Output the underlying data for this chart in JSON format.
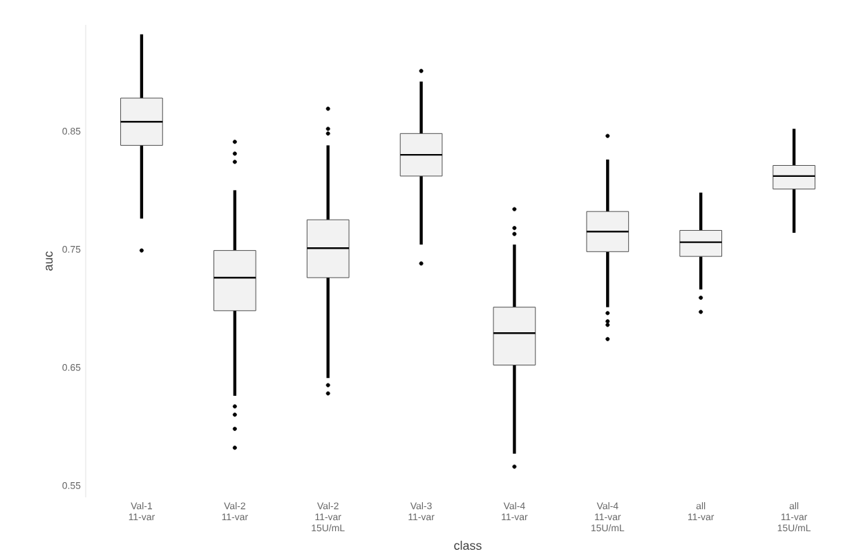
{
  "chart_data": {
    "type": "box",
    "xlabel": "class",
    "ylabel": "auc",
    "color": "#f2f2f2",
    "categories": [
      "Val-1 11-var",
      "Val-2 11-var",
      "Val-2 11-var 15U/mL",
      "Val-3 11-var",
      "Val-4 11-var",
      "Val-4 11-var 15U/mL",
      "all 11-var",
      "all 11-var 15U/mL"
    ],
    "boxes": [
      {
        "low": 0.776,
        "q1": 0.838,
        "median": 0.858,
        "q3": 0.878,
        "high": 0.932,
        "outliers": [
          0.749
        ]
      },
      {
        "low": 0.626,
        "q1": 0.698,
        "median": 0.726,
        "q3": 0.749,
        "high": 0.8,
        "outliers": [
          0.841,
          0.831,
          0.824,
          0.617,
          0.61,
          0.598,
          0.582
        ]
      },
      {
        "low": 0.641,
        "q1": 0.726,
        "median": 0.751,
        "q3": 0.775,
        "high": 0.838,
        "outliers": [
          0.869,
          0.852,
          0.848,
          0.635,
          0.628
        ]
      },
      {
        "low": 0.754,
        "q1": 0.812,
        "median": 0.83,
        "q3": 0.848,
        "high": 0.892,
        "outliers": [
          0.901,
          0.738
        ]
      },
      {
        "low": 0.577,
        "q1": 0.652,
        "median": 0.679,
        "q3": 0.701,
        "high": 0.754,
        "outliers": [
          0.784,
          0.768,
          0.763,
          0.566
        ]
      },
      {
        "low": 0.701,
        "q1": 0.748,
        "median": 0.765,
        "q3": 0.782,
        "high": 0.826,
        "outliers": [
          0.846,
          0.696,
          0.689,
          0.686,
          0.674
        ]
      },
      {
        "low": 0.716,
        "q1": 0.744,
        "median": 0.756,
        "q3": 0.766,
        "high": 0.798,
        "outliers": [
          0.709,
          0.697
        ]
      },
      {
        "low": 0.764,
        "q1": 0.801,
        "median": 0.812,
        "q3": 0.821,
        "high": 0.852
      }
    ],
    "ylim": [
      0.54,
      0.94
    ],
    "yticks": [
      0.55,
      0.65,
      0.75,
      0.85
    ]
  }
}
